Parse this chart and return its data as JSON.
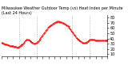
{
  "title": "Milwaukee Weather Outdoor Temp (vs) Heat Index per Minute (Last 24 Hours)",
  "background_color": "#ffffff",
  "line_color": "#ff0000",
  "vline_color": "#999999",
  "y_ticks": [
    10,
    20,
    30,
    40,
    50,
    60,
    70,
    80
  ],
  "ylim": [
    5,
    85
  ],
  "xlim": [
    0,
    144
  ],
  "x_values": [
    0,
    1,
    2,
    3,
    4,
    5,
    6,
    7,
    8,
    9,
    10,
    11,
    12,
    13,
    14,
    15,
    16,
    17,
    18,
    19,
    20,
    21,
    22,
    23,
    24,
    25,
    26,
    27,
    28,
    29,
    30,
    31,
    32,
    33,
    34,
    35,
    36,
    37,
    38,
    39,
    40,
    41,
    42,
    43,
    44,
    45,
    46,
    47,
    48,
    49,
    50,
    51,
    52,
    53,
    54,
    55,
    56,
    57,
    58,
    59,
    60,
    61,
    62,
    63,
    64,
    65,
    66,
    67,
    68,
    69,
    70,
    71,
    72,
    73,
    74,
    75,
    76,
    77,
    78,
    79,
    80,
    81,
    82,
    83,
    84,
    85,
    86,
    87,
    88,
    89,
    90,
    91,
    92,
    93,
    94,
    95,
    96,
    97,
    98,
    99,
    100,
    101,
    102,
    103,
    104,
    105,
    106,
    107,
    108,
    109,
    110,
    111,
    112,
    113,
    114,
    115,
    116,
    117,
    118,
    119,
    120,
    121,
    122,
    123,
    124,
    125,
    126,
    127,
    128,
    129,
    130,
    131,
    132,
    133,
    134,
    135,
    136,
    137,
    138,
    139,
    140,
    141,
    142,
    143,
    144
  ],
  "y_values": [
    32,
    31,
    31,
    30,
    30,
    29,
    29,
    28,
    28,
    27,
    27,
    26,
    26,
    26,
    25,
    25,
    25,
    24,
    24,
    24,
    24,
    23,
    23,
    23,
    24,
    25,
    26,
    27,
    28,
    29,
    30,
    32,
    34,
    36,
    37,
    38,
    38,
    37,
    36,
    35,
    34,
    33,
    32,
    31,
    30,
    30,
    30,
    31,
    32,
    33,
    34,
    36,
    38,
    40,
    42,
    44,
    46,
    48,
    50,
    52,
    54,
    56,
    58,
    60,
    62,
    63,
    64,
    65,
    66,
    67,
    68,
    69,
    70,
    71,
    72,
    72,
    73,
    73,
    73,
    72,
    72,
    71,
    71,
    70,
    70,
    69,
    68,
    67,
    66,
    65,
    64,
    63,
    61,
    59,
    57,
    55,
    53,
    51,
    49,
    47,
    45,
    43,
    41,
    40,
    38,
    37,
    36,
    35,
    34,
    33,
    32,
    31,
    31,
    31,
    31,
    32,
    33,
    34,
    35,
    36,
    37,
    38,
    38,
    38,
    38,
    37,
    37,
    36,
    36,
    36,
    36,
    36,
    36,
    36,
    36,
    36,
    36,
    36,
    36,
    36,
    36,
    36,
    36,
    36,
    36
  ],
  "vlines": [
    24,
    48,
    96,
    120
  ],
  "title_fontsize": 3.5,
  "tick_fontsize": 3.5,
  "line_width": 0.6,
  "marker_size": 0.8
}
